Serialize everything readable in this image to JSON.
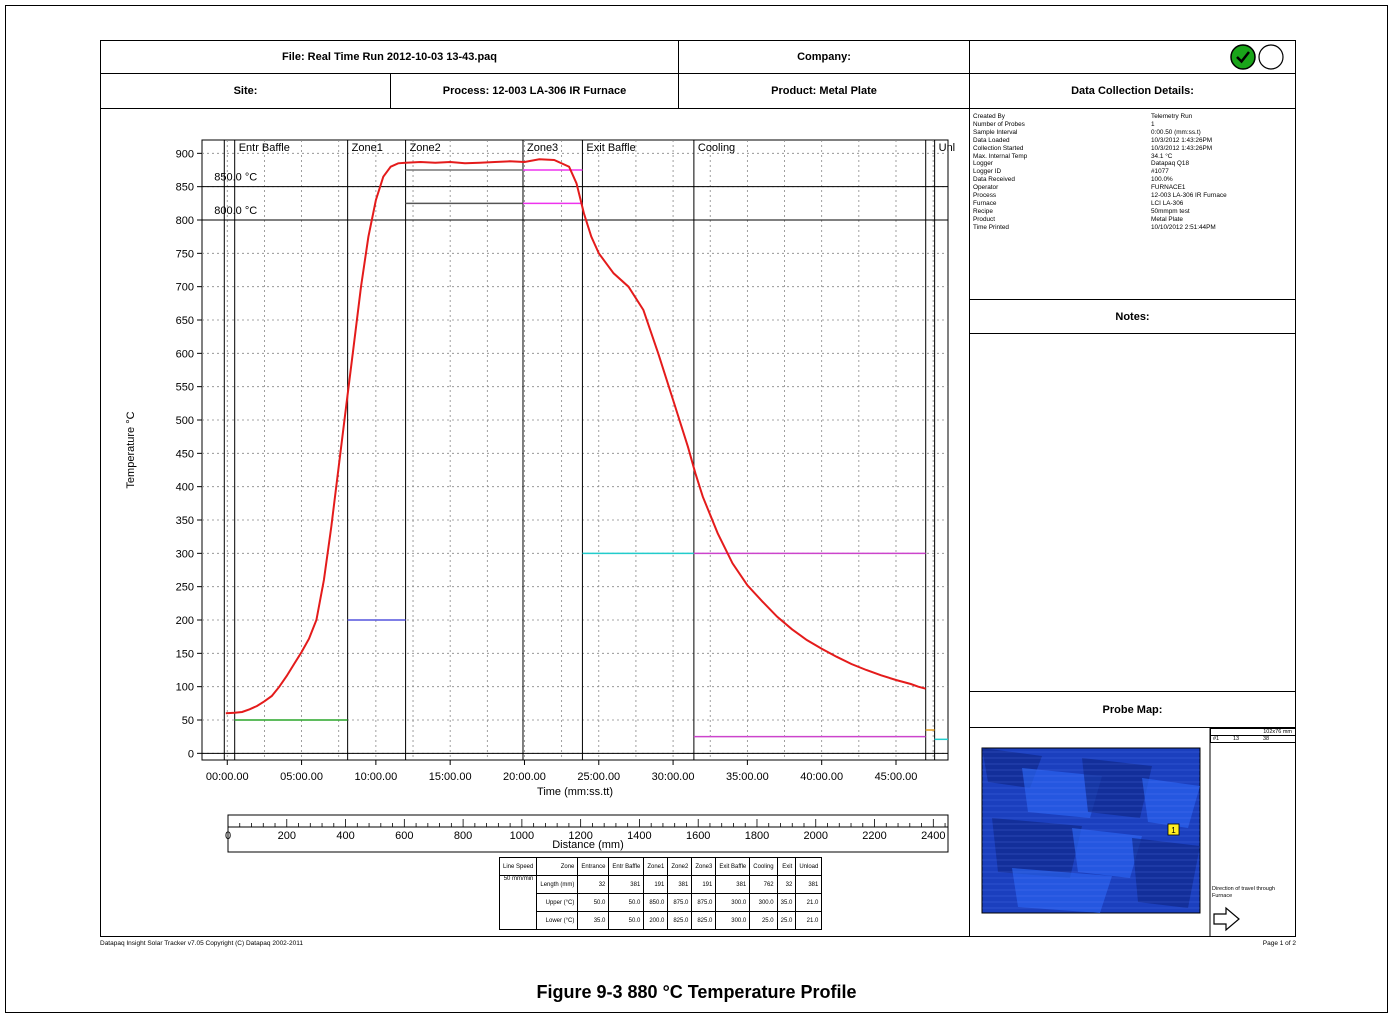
{
  "header": {
    "file": "File: Real Time Run 2012-10-03 13-43.paq",
    "company": "Company:",
    "site": "Site:",
    "process": "Process: 12-003 LA-306 IR Furnace",
    "product": "Product: Metal Plate",
    "data_collection_title": "Data Collection Details:",
    "notes_title": "Notes:",
    "probe_map_title": "Probe Map:"
  },
  "status_icons": [
    "check-circle-icon",
    "empty-circle-icon"
  ],
  "colors": {
    "profile": "#e41b1b",
    "pass": "#1aa51a",
    "map": "#1d46d6"
  },
  "details": [
    {
      "k": "Created By",
      "v": "Telemetry Run"
    },
    {
      "k": "Number of Probes",
      "v": "1"
    },
    {
      "k": "Sample Interval",
      "v": "0:00.50 (mm:ss.t)"
    },
    {
      "k": "Data Loaded",
      "v": "10/3/2012 1:43:26PM"
    },
    {
      "k": "Collection Started",
      "v": "10/3/2012 1:43:26PM"
    },
    {
      "k": "Max. Internal Temp",
      "v": "34.1 °C"
    },
    {
      "k": "Logger",
      "v": "Datapaq Q18"
    },
    {
      "k": "Logger ID",
      "v": "#1077"
    },
    {
      "k": "Data Received",
      "v": "100.0%"
    },
    {
      "k": "Operator",
      "v": "FURNACE1"
    },
    {
      "k": "Process",
      "v": "12-003 LA-306 IR Furnace"
    },
    {
      "k": "Furnace",
      "v": "LCI LA-306"
    },
    {
      "k": "Recipe",
      "v": "50mmpm test"
    },
    {
      "k": "Product",
      "v": "Metal Plate"
    },
    {
      "k": "Time Printed",
      "v": "10/10/2012 2:51:44PM"
    }
  ],
  "chart_data": {
    "type": "line",
    "xlabel": "Time (mm:ss.tt)",
    "ylabel": "Temperature °C",
    "x_unit": "minutes",
    "x_ticks": [
      "00:00.00",
      "05:00.00",
      "10:00.00",
      "15:00.00",
      "20:00.00",
      "25:00.00",
      "30:00.00",
      "35:00.00",
      "40:00.00",
      "45:00.00"
    ],
    "xlim": [
      -1.7,
      48.5
    ],
    "ylim": [
      -10,
      920
    ],
    "y_ticks": [
      0,
      50,
      100,
      150,
      200,
      250,
      300,
      350,
      400,
      450,
      500,
      550,
      600,
      650,
      700,
      750,
      800,
      850,
      900
    ],
    "grid": true,
    "zones": [
      {
        "label": "",
        "start": -0.2
      },
      {
        "label": "Entr Baffle",
        "start": 0.5
      },
      {
        "label": "Zone1",
        "start": 8.1
      },
      {
        "label": "Zone2",
        "start": 12.0
      },
      {
        "label": "Zone3",
        "start": 19.9
      },
      {
        "label": "Exit Baffle",
        "start": 23.9
      },
      {
        "label": "Cooling",
        "start": 31.4
      },
      {
        "label": "",
        "start": 47.0
      },
      {
        "label": "Unl",
        "start": 47.6
      }
    ],
    "thresholds": [
      {
        "label": "850.0 °C",
        "value": 850
      },
      {
        "label": "800.0 °C",
        "value": 800
      }
    ],
    "series": [
      {
        "points": [
          [
            -0.1,
            60
          ],
          [
            0.5,
            61
          ],
          [
            1.0,
            62
          ],
          [
            1.5,
            66
          ],
          [
            2.0,
            71
          ],
          [
            2.5,
            78
          ],
          [
            3.0,
            86
          ],
          [
            3.5,
            100
          ],
          [
            4.0,
            116
          ],
          [
            4.5,
            134
          ],
          [
            5.0,
            152
          ],
          [
            5.5,
            172
          ],
          [
            6.0,
            200
          ],
          [
            6.5,
            260
          ],
          [
            7.0,
            340
          ],
          [
            7.5,
            430
          ],
          [
            8.0,
            520
          ],
          [
            8.5,
            610
          ],
          [
            9.0,
            700
          ],
          [
            9.5,
            775
          ],
          [
            10.0,
            830
          ],
          [
            10.5,
            865
          ],
          [
            11.0,
            880
          ],
          [
            11.5,
            885
          ],
          [
            12.0,
            886
          ],
          [
            13.0,
            887
          ],
          [
            14.0,
            886
          ],
          [
            15.0,
            887
          ],
          [
            16.0,
            885
          ],
          [
            17.0,
            886
          ],
          [
            18.0,
            887
          ],
          [
            19.0,
            888
          ],
          [
            20.0,
            887
          ],
          [
            21.0,
            891
          ],
          [
            22.0,
            890
          ],
          [
            23.0,
            880
          ],
          [
            23.5,
            855
          ],
          [
            24.0,
            810
          ],
          [
            24.5,
            775
          ],
          [
            25.0,
            750
          ],
          [
            25.5,
            735
          ],
          [
            26.0,
            720
          ],
          [
            27.0,
            700
          ],
          [
            28.0,
            665
          ],
          [
            29.0,
            600
          ],
          [
            30.0,
            530
          ],
          [
            31.0,
            460
          ],
          [
            31.5,
            420
          ],
          [
            32.0,
            385
          ],
          [
            33.0,
            330
          ],
          [
            34.0,
            285
          ],
          [
            35.0,
            252
          ],
          [
            36.0,
            228
          ],
          [
            37.0,
            205
          ],
          [
            38.0,
            186
          ],
          [
            39.0,
            170
          ],
          [
            40.0,
            157
          ],
          [
            41.0,
            145
          ],
          [
            42.0,
            134
          ],
          [
            43.0,
            125
          ],
          [
            44.0,
            117
          ],
          [
            45.0,
            110
          ],
          [
            46.0,
            104
          ],
          [
            46.5,
            100
          ],
          [
            47.0,
            97
          ]
        ]
      }
    ],
    "limit_lines": [
      {
        "x0": 0.5,
        "x1": 8.1,
        "value": 50,
        "color": "#2aa52a"
      },
      {
        "x0": 8.1,
        "x1": 12.0,
        "value": 200,
        "color": "#5555dd"
      },
      {
        "x0": 12.0,
        "x1": 19.9,
        "value": 875,
        "color": "#777777"
      },
      {
        "x0": 12.0,
        "x1": 19.9,
        "value": 825,
        "color": "#555555"
      },
      {
        "x0": 19.9,
        "x1": 23.9,
        "value": 875,
        "color": "#ee33ee"
      },
      {
        "x0": 19.9,
        "x1": 23.9,
        "value": 825,
        "color": "#ee33ee"
      },
      {
        "x0": 23.9,
        "x1": 31.4,
        "value": 300,
        "color": "#22cccc"
      },
      {
        "x0": 31.4,
        "x1": 47.0,
        "value": 300,
        "color": "#cc44cc"
      },
      {
        "x0": 31.4,
        "x1": 47.0,
        "value": 25,
        "color": "#cc44cc"
      },
      {
        "x0": 47.0,
        "x1": 47.6,
        "value": 35,
        "color": "#e6a020"
      },
      {
        "x0": 47.6,
        "x1": 48.5,
        "value": 21,
        "color": "#22cccc"
      }
    ],
    "distance_axis": {
      "label": "Distance (mm)",
      "ticks": [
        0,
        200,
        400,
        600,
        800,
        1000,
        1200,
        1400,
        1600,
        1800,
        2000,
        2200,
        2400
      ],
      "range": [
        0,
        2450
      ]
    }
  },
  "zone_table": {
    "header": [
      "Line Speed",
      "Zone",
      "Entrance",
      "Entr Baffle",
      "Zone1",
      "Zone2",
      "Zone3",
      "Exit Baffle",
      "Cooling",
      "Exit",
      "Unload"
    ],
    "line_speed": "50 mm/min",
    "rows": [
      [
        "Length (mm)",
        "32",
        "381",
        "191",
        "381",
        "191",
        "381",
        "762",
        "32",
        "381"
      ],
      [
        "Upper (°C)",
        "50.0",
        "50.0",
        "850.0",
        "875.0",
        "875.0",
        "300.0",
        "300.0",
        "35.0",
        "21.0"
      ],
      [
        "Lower (°C)",
        "35.0",
        "50.0",
        "200.0",
        "825.0",
        "825.0",
        "300.0",
        "25.0",
        "25.0",
        "21.0"
      ]
    ]
  },
  "probe_map": {
    "size_label": "102x76 mm",
    "probe_row": [
      "#1",
      "13",
      "38"
    ],
    "probe_marker": "1",
    "direction_text": "Direction of travel through Furnace"
  },
  "footer": {
    "left": "Datapaq Insight Solar Tracker v7.05 Copyright (C) Datapaq 2002-2011",
    "right": "Page 1 of 2"
  },
  "caption": "Figure 9-3  880 °C Temperature Profile"
}
